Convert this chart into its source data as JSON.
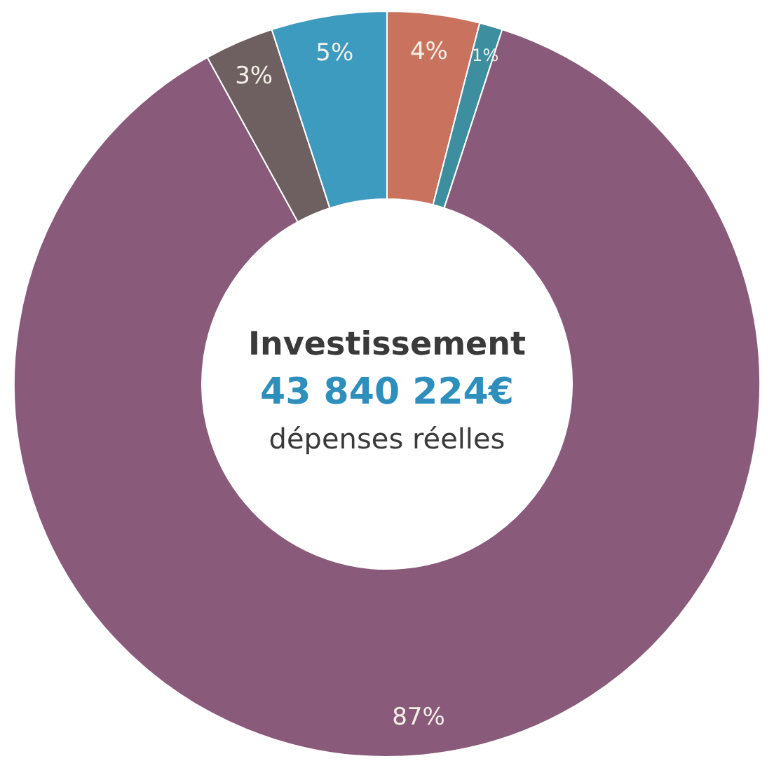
{
  "chart_data": {
    "type": "donut",
    "categories": [
      null,
      null,
      null,
      null,
      null
    ],
    "values": [
      4,
      1,
      87,
      3,
      5
    ],
    "colors": [
      "#c9735f",
      "#3d8fa0",
      "#8a5a7a",
      "#6e5f60",
      "#3d9bc0"
    ],
    "value_labels": [
      "4%",
      "1%",
      "87%",
      "3%",
      "5%"
    ],
    "annotations": [
      "Investissement",
      "43 840 224€",
      "dépenses réelles"
    ]
  }
}
